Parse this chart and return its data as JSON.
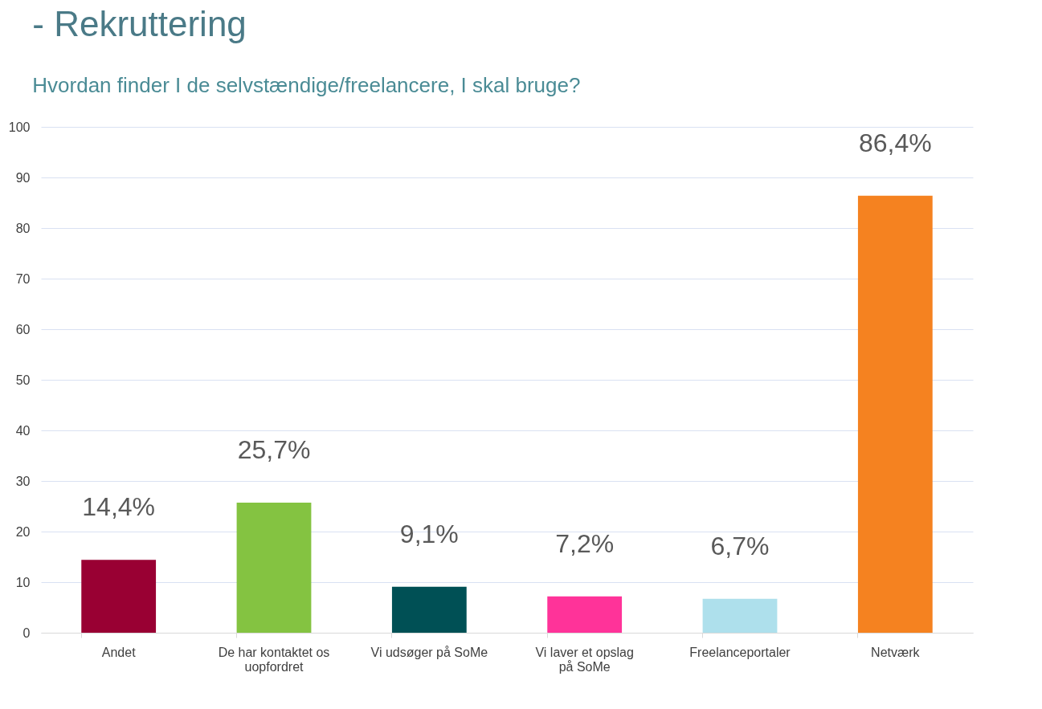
{
  "chart_data": {
    "type": "bar",
    "title": "- Rekruttering",
    "subtitle": "Hvordan finder I de selvstændige/freelancere, I skal bruge?",
    "categories": [
      "Andet",
      "De har kontaktet os uopfordret",
      "Vi udsøger på SoMe",
      "Vi laver et opslag på SoMe",
      "Freelanceportaler",
      "Netværk"
    ],
    "values": [
      14.4,
      25.7,
      9.1,
      7.2,
      6.7,
      86.4
    ],
    "colors": [
      "#990033",
      "#84c341",
      "#005055",
      "#ff3399",
      "#aee0ec",
      "#f58220"
    ],
    "value_labels": [
      "14,4%",
      "25,7%",
      "9,1%",
      "7,2%",
      "6,7%",
      "86,4%"
    ],
    "ylim": [
      0,
      100
    ],
    "yticks": [
      0,
      10,
      20,
      30,
      40,
      50,
      60,
      70,
      80,
      90,
      100
    ],
    "grid": "y"
  }
}
